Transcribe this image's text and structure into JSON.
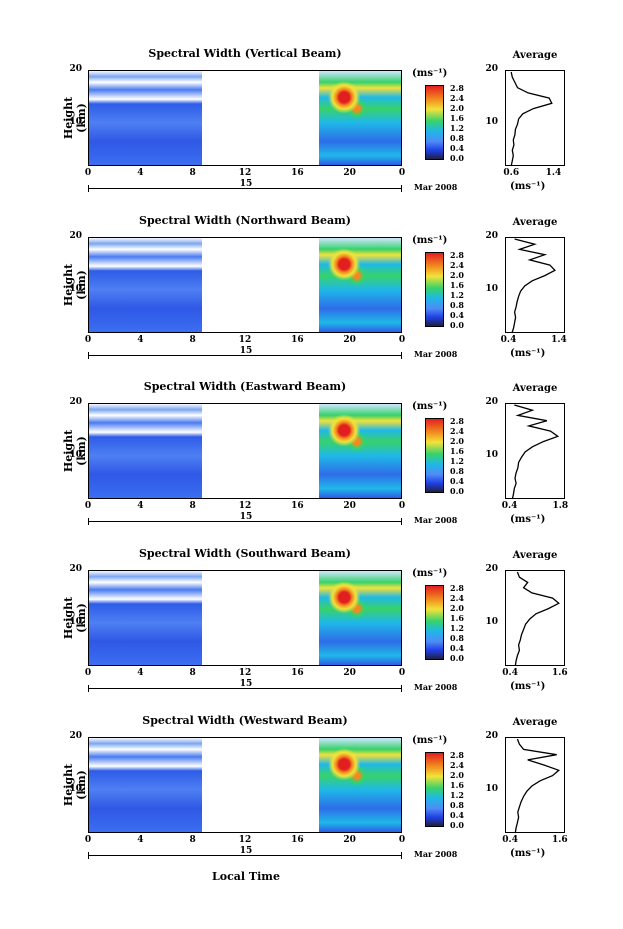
{
  "chart_data": [
    {
      "type": "heatmap",
      "title": "Spectral Width (Vertical Beam)",
      "ylabel": "Height (km)",
      "yticks": [
        "20",
        "10"
      ],
      "xticks": [
        "0",
        "4",
        "8",
        "12",
        "16",
        "20",
        "0"
      ],
      "day_label": "15",
      "month_label": "Mar 2008",
      "colorbar": {
        "unit": "(ms⁻¹)",
        "ticks": [
          "2.8",
          "2.4",
          "2.0",
          "1.6",
          "1.2",
          "0.8",
          "0.4",
          "0.0"
        ]
      },
      "xlim": [
        0,
        24
      ],
      "ylim": [
        2,
        20
      ],
      "data_gaps": [
        [
          8.6,
          17.6
        ]
      ],
      "average": {
        "title": "Average",
        "xticks": [
          "0.6",
          "1.4"
        ],
        "xunit": "(ms⁻¹)",
        "yticks": [
          "20",
          "10"
        ],
        "xlim": [
          0.5,
          1.6
        ],
        "profile": [
          [
            0.58,
            2
          ],
          [
            0.6,
            3
          ],
          [
            0.62,
            4
          ],
          [
            0.6,
            5
          ],
          [
            0.63,
            6
          ],
          [
            0.62,
            7
          ],
          [
            0.65,
            8
          ],
          [
            0.66,
            9
          ],
          [
            0.7,
            10
          ],
          [
            0.72,
            11
          ],
          [
            0.8,
            12
          ],
          [
            1.0,
            13
          ],
          [
            1.35,
            14
          ],
          [
            1.3,
            15
          ],
          [
            0.9,
            16
          ],
          [
            0.7,
            17
          ],
          [
            0.65,
            18
          ],
          [
            0.6,
            19
          ],
          [
            0.58,
            20
          ]
        ]
      }
    },
    {
      "type": "heatmap",
      "title": "Spectral Width (Northward Beam)",
      "ylabel": "Height (km)",
      "yticks": [
        "20",
        "10"
      ],
      "xticks": [
        "0",
        "4",
        "8",
        "12",
        "16",
        "20",
        "0"
      ],
      "day_label": "15",
      "month_label": "Mar 2008",
      "colorbar": {
        "unit": "(ms⁻¹)",
        "ticks": [
          "2.8",
          "2.4",
          "2.0",
          "1.6",
          "1.2",
          "0.8",
          "0.4",
          "0.0"
        ]
      },
      "xlim": [
        0,
        24
      ],
      "ylim": [
        2,
        20
      ],
      "data_gaps": [
        [
          8.6,
          17.6
        ]
      ],
      "average": {
        "title": "Average",
        "xticks": [
          "0.4",
          "1.4"
        ],
        "xunit": "(ms⁻¹)",
        "yticks": [
          "20",
          "10"
        ],
        "xlim": [
          0.35,
          1.5
        ],
        "profile": [
          [
            0.45,
            2
          ],
          [
            0.48,
            3
          ],
          [
            0.5,
            4
          ],
          [
            0.52,
            5
          ],
          [
            0.5,
            6
          ],
          [
            0.53,
            7
          ],
          [
            0.55,
            8
          ],
          [
            0.58,
            9
          ],
          [
            0.62,
            10
          ],
          [
            0.7,
            11
          ],
          [
            0.85,
            12
          ],
          [
            1.1,
            13
          ],
          [
            1.3,
            14
          ],
          [
            1.2,
            15
          ],
          [
            0.8,
            16
          ],
          [
            1.1,
            17
          ],
          [
            0.6,
            18
          ],
          [
            0.9,
            19
          ],
          [
            0.5,
            20
          ]
        ]
      }
    },
    {
      "type": "heatmap",
      "title": "Spectral Width (Eastward Beam)",
      "ylabel": "Height (km)",
      "yticks": [
        "20",
        "10"
      ],
      "xticks": [
        "0",
        "4",
        "8",
        "12",
        "16",
        "20",
        "0"
      ],
      "day_label": "15",
      "month_label": "Mar 2008",
      "colorbar": {
        "unit": "(ms⁻¹)",
        "ticks": [
          "2.8",
          "2.4",
          "2.0",
          "1.6",
          "1.2",
          "0.8",
          "0.4",
          "0.0"
        ]
      },
      "xlim": [
        0,
        24
      ],
      "ylim": [
        2,
        20
      ],
      "data_gaps": [
        [
          8.6,
          17.6
        ]
      ],
      "average": {
        "title": "Average",
        "xticks": [
          "0.4",
          "1.8"
        ],
        "xunit": "(ms⁻¹)",
        "yticks": [
          "20",
          "10"
        ],
        "xlim": [
          0.3,
          1.9
        ],
        "profile": [
          [
            0.45,
            2
          ],
          [
            0.48,
            3
          ],
          [
            0.5,
            4
          ],
          [
            0.55,
            5
          ],
          [
            0.52,
            6
          ],
          [
            0.55,
            7
          ],
          [
            0.6,
            8
          ],
          [
            0.62,
            9
          ],
          [
            0.7,
            10
          ],
          [
            0.8,
            11
          ],
          [
            1.0,
            12
          ],
          [
            1.3,
            13
          ],
          [
            1.7,
            14
          ],
          [
            1.5,
            15
          ],
          [
            0.9,
            16
          ],
          [
            1.4,
            17
          ],
          [
            0.6,
            18
          ],
          [
            1.0,
            19
          ],
          [
            0.5,
            20
          ]
        ]
      }
    },
    {
      "type": "heatmap",
      "title": "Spectral Width (Southward Beam)",
      "ylabel": "Height (km)",
      "yticks": [
        "20",
        "10"
      ],
      "xticks": [
        "0",
        "4",
        "8",
        "12",
        "16",
        "20",
        "0"
      ],
      "day_label": "15",
      "month_label": "Mar 2008",
      "colorbar": {
        "unit": "(ms⁻¹)",
        "ticks": [
          "2.8",
          "2.4",
          "2.0",
          "1.6",
          "1.2",
          "0.8",
          "0.4",
          "0.0"
        ]
      },
      "xlim": [
        0,
        24
      ],
      "ylim": [
        2,
        20
      ],
      "data_gaps": [
        [
          8.6,
          17.6
        ]
      ],
      "average": {
        "title": "Average",
        "xticks": [
          "0.4",
          "1.6"
        ],
        "xunit": "(ms⁻¹)",
        "yticks": [
          "20",
          "10"
        ],
        "xlim": [
          0.3,
          1.7
        ],
        "profile": [
          [
            0.5,
            2
          ],
          [
            0.52,
            3
          ],
          [
            0.55,
            4
          ],
          [
            0.6,
            5
          ],
          [
            0.58,
            6
          ],
          [
            0.62,
            7
          ],
          [
            0.65,
            8
          ],
          [
            0.7,
            9
          ],
          [
            0.75,
            10
          ],
          [
            0.85,
            11
          ],
          [
            1.0,
            12
          ],
          [
            1.3,
            13
          ],
          [
            1.55,
            14
          ],
          [
            1.4,
            15
          ],
          [
            0.9,
            16
          ],
          [
            0.7,
            17
          ],
          [
            0.8,
            18
          ],
          [
            0.6,
            19
          ],
          [
            0.55,
            20
          ]
        ]
      }
    },
    {
      "type": "heatmap",
      "title": "Spectral Width (Westward Beam)",
      "ylabel": "Height (km)",
      "yticks": [
        "20",
        "10"
      ],
      "xticks": [
        "0",
        "4",
        "8",
        "12",
        "16",
        "20",
        "0"
      ],
      "day_label": "15",
      "month_label": "Mar 2008",
      "colorbar": {
        "unit": "(ms⁻¹)",
        "ticks": [
          "2.8",
          "2.4",
          "2.0",
          "1.6",
          "1.2",
          "0.8",
          "0.4",
          "0.0"
        ]
      },
      "xlim": [
        0,
        24
      ],
      "ylim": [
        2,
        20
      ],
      "data_gaps": [
        [
          8.6,
          17.6
        ]
      ],
      "average": {
        "title": "Average",
        "xticks": [
          "0.4",
          "1.6"
        ],
        "xunit": "(ms⁻¹)",
        "yticks": [
          "20",
          "10"
        ],
        "xlim": [
          0.3,
          1.7
        ],
        "profile": [
          [
            0.5,
            2
          ],
          [
            0.52,
            3
          ],
          [
            0.55,
            4
          ],
          [
            0.58,
            5
          ],
          [
            0.56,
            6
          ],
          [
            0.6,
            7
          ],
          [
            0.64,
            8
          ],
          [
            0.7,
            9
          ],
          [
            0.78,
            10
          ],
          [
            0.9,
            11
          ],
          [
            1.1,
            12
          ],
          [
            1.4,
            13
          ],
          [
            1.55,
            14
          ],
          [
            1.2,
            15
          ],
          [
            0.8,
            16
          ],
          [
            1.5,
            17
          ],
          [
            0.7,
            18
          ],
          [
            0.6,
            19
          ],
          [
            0.55,
            20
          ]
        ]
      }
    }
  ],
  "xaxis_title": "Local Time",
  "colors": {
    "blue": "#1f3de0",
    "cyan": "#1fb8e8",
    "green": "#37d26a",
    "yellow": "#f2e23a",
    "orange": "#f28a1f",
    "red": "#e21f1f"
  }
}
